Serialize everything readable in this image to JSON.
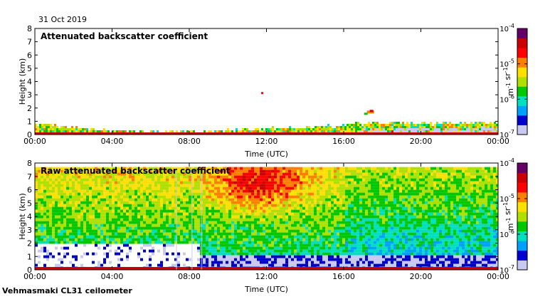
{
  "date": "31 Oct 2019",
  "instrument": "Vehmasmaki CL31 ceilometer",
  "colors": {
    "scale": [
      "#c8c8f0",
      "#0000cc",
      "#00a0ff",
      "#00e0c0",
      "#00c800",
      "#b0e000",
      "#ffe000",
      "#ff8000",
      "#ff0000",
      "#cc0000",
      "#660066"
    ],
    "background": "#ffffff"
  },
  "chart_data": [
    {
      "type": "heatmap",
      "title": "Attenuated backscatter coefficient",
      "xlabel": "Time (UTC)",
      "ylabel": "Height (km)",
      "xticks": [
        "00:00",
        "04:00",
        "08:00",
        "12:00",
        "16:00",
        "20:00",
        "00:00"
      ],
      "yticks": [
        "0",
        "1",
        "2",
        "3",
        "4",
        "5",
        "6",
        "7",
        "8"
      ],
      "xlim": [
        0,
        24
      ],
      "ylim": [
        0,
        8
      ],
      "colorbar": {
        "label": "m-1 sr-1",
        "scale": "log",
        "range": [
          1e-07,
          0.0001
        ],
        "ticks": [
          {
            "base": "10",
            "exp": "-4",
            "value": 0.0001
          },
          {
            "base": "10",
            "exp": "-5",
            "value": 1e-05
          },
          {
            "base": "10",
            "exp": "-6",
            "value": 1e-06
          },
          {
            "base": "10",
            "exp": "-7",
            "value": 1e-07
          }
        ]
      },
      "features": [
        {
          "kind": "boundary-layer",
          "hours": [
            0,
            24
          ],
          "top_km": [
            0.9,
            0.5,
            0.3,
            0.3,
            0.55,
            0.7,
            1.0,
            0.9,
            1.0
          ]
        },
        {
          "kind": "cloud",
          "hour": 17.5,
          "height_km": 1.7
        },
        {
          "kind": "cloud",
          "hour": 11.8,
          "height_km": 3.1
        }
      ]
    },
    {
      "type": "heatmap",
      "title": "Raw attenuated backscatter coefficient",
      "xlabel": "Time (UTC)",
      "ylabel": "Height (km)",
      "xticks": [
        "00:00",
        "04:00",
        "08:00",
        "12:00",
        "16:00",
        "20:00",
        "00:00"
      ],
      "yticks": [
        "0",
        "1",
        "2",
        "3",
        "4",
        "5",
        "6",
        "7",
        "8"
      ],
      "xlim": [
        0,
        24
      ],
      "ylim": [
        0,
        8
      ],
      "colorbar": {
        "label": "m-1 sr-1",
        "scale": "log",
        "range": [
          1e-07,
          0.0001
        ],
        "ticks": [
          {
            "base": "10",
            "exp": "-4",
            "value": 0.0001
          },
          {
            "base": "10",
            "exp": "-5",
            "value": 1e-05
          },
          {
            "base": "10",
            "exp": "-6",
            "value": 1e-06
          },
          {
            "base": "10",
            "exp": "-7",
            "value": 1e-07
          }
        ]
      },
      "features": [
        {
          "kind": "noise-field",
          "hours": [
            0,
            24
          ],
          "height_km": [
            0,
            7.7
          ]
        },
        {
          "kind": "clear-region",
          "hours": [
            0,
            8.5
          ],
          "height_km": [
            0.2,
            2.0
          ]
        },
        {
          "kind": "high-signal",
          "hour": 11.5,
          "height_km": 6.5
        }
      ]
    }
  ]
}
